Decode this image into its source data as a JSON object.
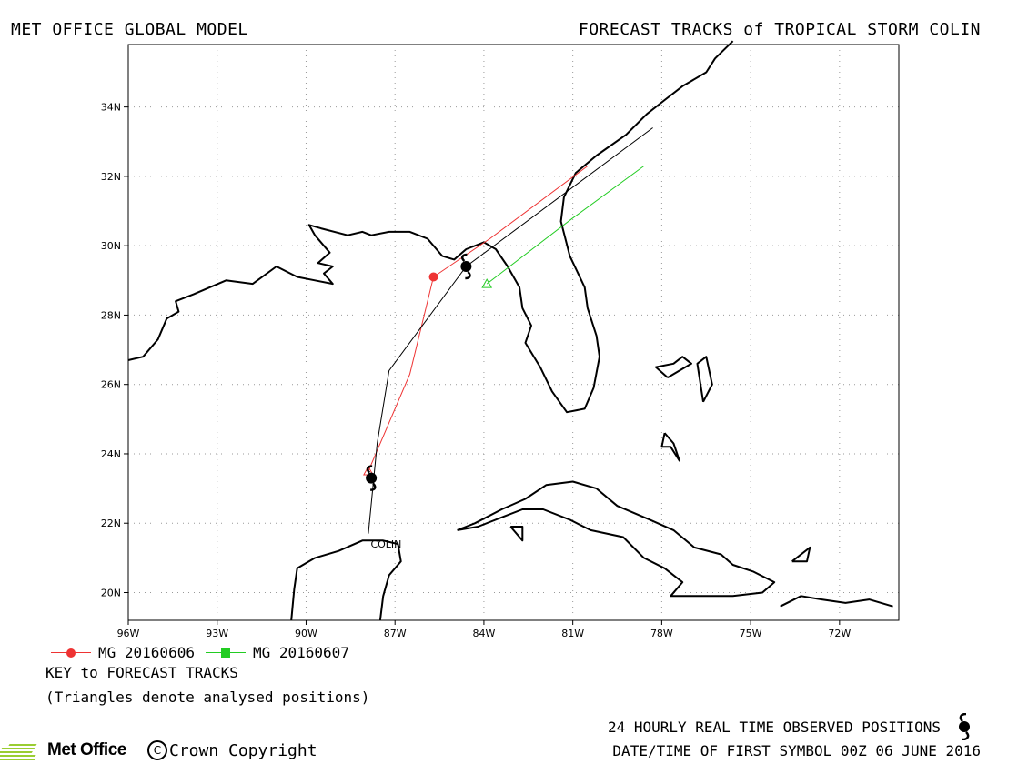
{
  "header": {
    "left_title": "MET OFFICE GLOBAL MODEL",
    "right_title": "FORECAST TRACKS of TROPICAL STORM COLIN"
  },
  "map": {
    "lon_range": [
      -96,
      -70
    ],
    "lat_range": [
      19.2,
      35.8
    ],
    "x_ticks": [
      {
        "lon": -96,
        "label": "96W"
      },
      {
        "lon": -93,
        "label": "93W"
      },
      {
        "lon": -90,
        "label": "90W"
      },
      {
        "lon": -87,
        "label": "87W"
      },
      {
        "lon": -84,
        "label": "84W"
      },
      {
        "lon": -81,
        "label": "81W"
      },
      {
        "lon": -78,
        "label": "78W"
      },
      {
        "lon": -75,
        "label": "75W"
      },
      {
        "lon": -72,
        "label": "72W"
      }
    ],
    "y_ticks": [
      {
        "lat": 20,
        "label": "20N"
      },
      {
        "lat": 22,
        "label": "22N"
      },
      {
        "lat": 24,
        "label": "24N"
      },
      {
        "lat": 26,
        "label": "26N"
      },
      {
        "lat": 28,
        "label": "28N"
      },
      {
        "lat": 30,
        "label": "30N"
      },
      {
        "lat": 32,
        "label": "32N"
      },
      {
        "lat": 34,
        "label": "34N"
      }
    ],
    "grid": true,
    "storm_label": {
      "text": "COLIN",
      "lon": -87.3,
      "lat": 21.3
    },
    "coastlines": [
      [
        [
          -96,
          26.7
        ],
        [
          -95.5,
          26.8
        ],
        [
          -95,
          27.3
        ],
        [
          -94.7,
          27.9
        ],
        [
          -94.3,
          28.1
        ],
        [
          -94.4,
          28.4
        ],
        [
          -93.8,
          28.6
        ],
        [
          -92.7,
          29.0
        ],
        [
          -91.8,
          28.9
        ],
        [
          -91,
          29.4
        ],
        [
          -90.3,
          29.1
        ],
        [
          -89.7,
          29.0
        ],
        [
          -89.1,
          28.9
        ],
        [
          -89.4,
          29.2
        ],
        [
          -89.1,
          29.4
        ],
        [
          -89.6,
          29.5
        ],
        [
          -89.2,
          29.8
        ],
        [
          -89.7,
          30.3
        ],
        [
          -89.9,
          30.6
        ],
        [
          -89.5,
          30.5
        ],
        [
          -88.6,
          30.3
        ],
        [
          -88.1,
          30.4
        ],
        [
          -87.8,
          30.3
        ],
        [
          -87.2,
          30.4
        ],
        [
          -86.5,
          30.4
        ],
        [
          -85.9,
          30.2
        ],
        [
          -85.4,
          29.7
        ],
        [
          -85.0,
          29.6
        ],
        [
          -84.6,
          29.9
        ],
        [
          -84.0,
          30.1
        ],
        [
          -83.6,
          29.9
        ],
        [
          -83.2,
          29.4
        ],
        [
          -82.8,
          28.8
        ],
        [
          -82.7,
          28.2
        ],
        [
          -82.4,
          27.7
        ],
        [
          -82.6,
          27.2
        ],
        [
          -82.1,
          26.5
        ],
        [
          -81.7,
          25.8
        ],
        [
          -81.2,
          25.2
        ],
        [
          -80.6,
          25.3
        ],
        [
          -80.3,
          25.9
        ],
        [
          -80.1,
          26.8
        ],
        [
          -80.2,
          27.4
        ],
        [
          -80.5,
          28.2
        ],
        [
          -80.6,
          28.8
        ],
        [
          -81.1,
          29.7
        ],
        [
          -81.4,
          30.7
        ],
        [
          -81.3,
          31.4
        ],
        [
          -80.9,
          32.1
        ],
        [
          -80.2,
          32.6
        ],
        [
          -79.2,
          33.2
        ],
        [
          -78.5,
          33.8
        ],
        [
          -77.9,
          34.2
        ],
        [
          -77.3,
          34.6
        ],
        [
          -76.5,
          35.0
        ],
        [
          -76.2,
          35.4
        ],
        [
          -75.6,
          35.9
        ]
      ],
      [
        [
          -90.5,
          19.2
        ],
        [
          -90.4,
          20.1
        ],
        [
          -90.3,
          20.7
        ],
        [
          -89.7,
          21.0
        ],
        [
          -88.9,
          21.2
        ],
        [
          -88.1,
          21.5
        ],
        [
          -87.4,
          21.5
        ],
        [
          -86.9,
          21.4
        ],
        [
          -86.8,
          20.9
        ],
        [
          -87.2,
          20.5
        ],
        [
          -87.4,
          19.9
        ],
        [
          -87.5,
          19.2
        ]
      ],
      [
        [
          -84.9,
          21.8
        ],
        [
          -84.3,
          22.0
        ],
        [
          -83.4,
          22.4
        ],
        [
          -82.6,
          22.7
        ],
        [
          -81.9,
          23.1
        ],
        [
          -81.0,
          23.2
        ],
        [
          -80.2,
          23.0
        ],
        [
          -79.5,
          22.5
        ],
        [
          -78.4,
          22.1
        ],
        [
          -77.6,
          21.8
        ],
        [
          -76.9,
          21.3
        ],
        [
          -76.0,
          21.1
        ],
        [
          -75.6,
          20.8
        ],
        [
          -74.9,
          20.6
        ],
        [
          -74.2,
          20.3
        ],
        [
          -74.6,
          20.0
        ],
        [
          -75.6,
          19.9
        ],
        [
          -76.7,
          19.9
        ],
        [
          -77.7,
          19.9
        ],
        [
          -77.3,
          20.3
        ],
        [
          -77.9,
          20.7
        ],
        [
          -78.6,
          21.0
        ],
        [
          -79.3,
          21.6
        ],
        [
          -80.4,
          21.8
        ],
        [
          -81.1,
          22.1
        ],
        [
          -82.0,
          22.4
        ],
        [
          -82.7,
          22.4
        ],
        [
          -83.3,
          22.2
        ],
        [
          -84.2,
          21.9
        ],
        [
          -84.9,
          21.8
        ]
      ],
      [
        [
          -83.1,
          21.9
        ],
        [
          -82.7,
          21.5
        ],
        [
          -82.7,
          21.9
        ],
        [
          -83.1,
          21.9
        ]
      ],
      [
        [
          -77.8,
          26.2
        ],
        [
          -78.2,
          26.5
        ],
        [
          -77.6,
          26.6
        ],
        [
          -77.3,
          26.8
        ],
        [
          -77.0,
          26.6
        ],
        [
          -77.8,
          26.2
        ]
      ],
      [
        [
          -77.9,
          24.6
        ],
        [
          -77.6,
          24.3
        ],
        [
          -77.4,
          23.8
        ],
        [
          -77.7,
          24.2
        ],
        [
          -78.0,
          24.2
        ],
        [
          -77.9,
          24.6
        ]
      ],
      [
        [
          -76.6,
          25.5
        ],
        [
          -76.3,
          26.0
        ],
        [
          -76.5,
          26.8
        ],
        [
          -76.8,
          26.6
        ],
        [
          -76.6,
          25.5
        ]
      ],
      [
        [
          -73.6,
          20.9
        ],
        [
          -73.1,
          20.9
        ],
        [
          -73.0,
          21.3
        ],
        [
          -73.6,
          20.9
        ]
      ],
      [
        [
          -74.0,
          19.6
        ],
        [
          -73.3,
          19.9
        ],
        [
          -72.6,
          19.8
        ],
        [
          -71.8,
          19.7
        ],
        [
          -71.0,
          19.8
        ],
        [
          -70.2,
          19.6
        ]
      ]
    ]
  },
  "chart_data": {
    "type": "map-tracks",
    "title": "FORECAST TRACKS of TROPICAL STORM COLIN",
    "storm": "COLIN",
    "series": [
      {
        "name": "MG 20160606",
        "color": "#ee3333",
        "marker": "circle",
        "points": [
          [
            -87.9,
            23.5
          ],
          [
            -86.5,
            26.3
          ],
          [
            -85.7,
            29.1
          ],
          [
            -83.8,
            30.2
          ],
          [
            -80.5,
            32.3
          ]
        ],
        "analysed_index": 0,
        "first_symbol_index": 2
      },
      {
        "name": "MG 20160607",
        "color": "#22cc22",
        "marker": "square",
        "points": [
          [
            -83.9,
            28.9
          ],
          [
            -81.0,
            30.8
          ],
          [
            -78.6,
            32.3
          ]
        ],
        "analysed_index": 0
      },
      {
        "name": "OBSERVED",
        "color": "#000000",
        "marker": "storm",
        "points": [
          [
            -87.9,
            21.7
          ],
          [
            -87.6,
            24.3
          ],
          [
            -87.2,
            26.4
          ],
          [
            -84.6,
            29.4
          ],
          [
            -78.3,
            33.4
          ]
        ],
        "observed_symbols": [
          [
            -87.8,
            23.3
          ],
          [
            -84.6,
            29.4
          ]
        ]
      }
    ]
  },
  "legend": {
    "items": [
      {
        "label": "MG 20160606",
        "color": "#ee3333",
        "marker": "circle"
      },
      {
        "label": "MG 20160607",
        "color": "#22cc22",
        "marker": "square"
      }
    ]
  },
  "key": {
    "title": "KEY to FORECAST TRACKS",
    "note": "(Triangles denote analysed positions)"
  },
  "footer": {
    "observed": "24 HOURLY REAL TIME OBSERVED POSITIONS",
    "date": "DATE/TIME OF FIRST SYMBOL 00Z 06 JUNE 2016",
    "logo": "Met Office",
    "copyright": "Crown Copyright",
    "copyright_symbol": "C"
  }
}
